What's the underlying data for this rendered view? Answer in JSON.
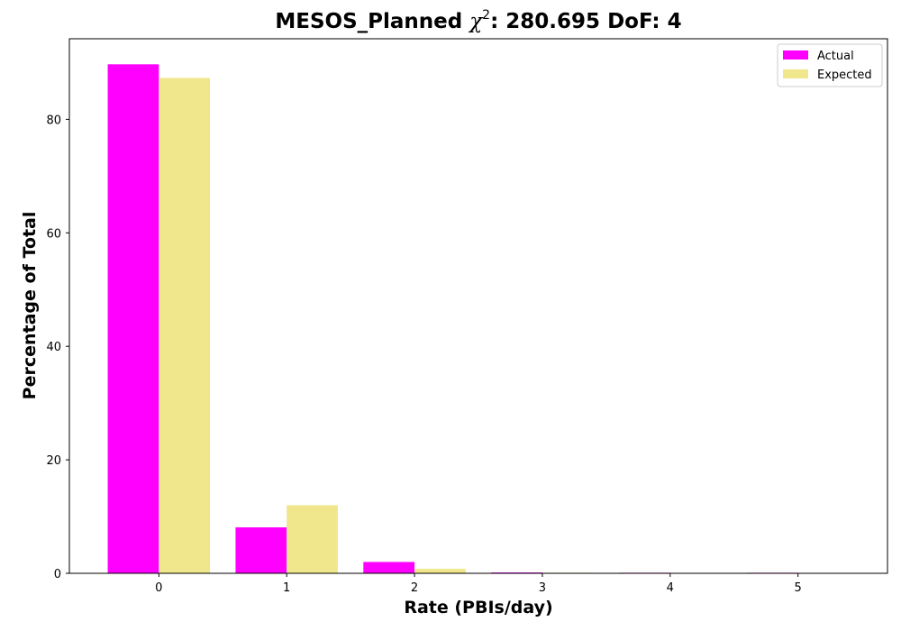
{
  "chart_data": {
    "type": "bar",
    "title_prefix": "MESOS_Planned ",
    "title_chi": "χ",
    "title_sup": "2",
    "title_suffix": ": 280.695 DoF: 4",
    "xlabel": "Rate (PBIs/day)",
    "ylabel": "Percentage of Total",
    "categories": [
      "0",
      "1",
      "2",
      "3",
      "4",
      "5"
    ],
    "x_values": [
      0,
      1,
      2,
      3,
      4,
      5
    ],
    "xlim": [
      -0.7,
      5.7
    ],
    "ylim": [
      0,
      94.2
    ],
    "yticks": [
      0,
      20,
      40,
      60,
      80
    ],
    "grid": false,
    "legend_position": "top-right",
    "series": [
      {
        "name": "Actual",
        "color": "#ff00ff",
        "values": [
          89.7,
          8.1,
          2.0,
          0.15,
          0.1,
          0.1
        ]
      },
      {
        "name": "Expected",
        "color": "#f0e68c",
        "values": [
          87.3,
          12.0,
          0.8,
          0.1,
          0.0,
          0.0
        ]
      }
    ]
  }
}
